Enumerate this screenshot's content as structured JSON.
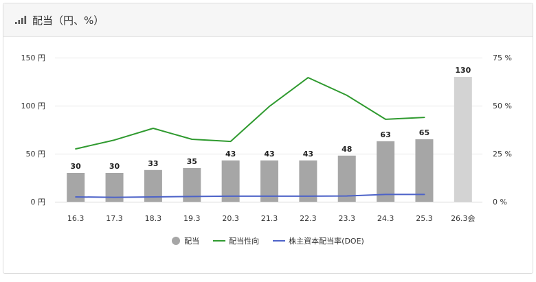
{
  "header": {
    "title": "配当（円、%）",
    "icon": "bar-chart-icon"
  },
  "chart_data": {
    "type": "bar",
    "categories": [
      "16.3",
      "17.3",
      "18.3",
      "19.3",
      "20.3",
      "21.3",
      "22.3",
      "23.3",
      "24.3",
      "25.3",
      "26.3会"
    ],
    "series": [
      {
        "name": "配当",
        "type": "bar",
        "axis": "left",
        "values": [
          30,
          30,
          33,
          35,
          43,
          43,
          43,
          48,
          63,
          65,
          130
        ],
        "data_labels": true,
        "color": "#a6a6a6",
        "bar_colors": [
          "#a6a6a6",
          "#a6a6a6",
          "#a6a6a6",
          "#a6a6a6",
          "#a6a6a6",
          "#a6a6a6",
          "#a6a6a6",
          "#a6a6a6",
          "#a6a6a6",
          "#a6a6a6",
          "#d3d3d3"
        ]
      },
      {
        "name": "配当性向",
        "type": "line",
        "axis": "right",
        "values": [
          27.5,
          32.1,
          38.2,
          32.5,
          31.4,
          49.6,
          64.6,
          55.4,
          42.9,
          43.9,
          null
        ],
        "color": "#2f9a2f"
      },
      {
        "name": "株主資本配当率(DOE)",
        "type": "line",
        "axis": "right",
        "values": [
          2.5,
          2.3,
          2.5,
          2.7,
          2.9,
          2.9,
          2.9,
          3.0,
          3.8,
          3.8,
          null
        ],
        "color": "#4c62c8"
      }
    ],
    "left_axis": {
      "range": [
        0,
        150
      ],
      "ticks": [
        {
          "value": 0,
          "label": "0 円"
        },
        {
          "value": 50,
          "label": "50 円"
        },
        {
          "value": 100,
          "label": "100 円"
        },
        {
          "value": 150,
          "label": "150 円"
        }
      ]
    },
    "right_axis": {
      "range": [
        0,
        75
      ],
      "ticks": [
        {
          "value": 0,
          "label": "0 %"
        },
        {
          "value": 25,
          "label": "25 %"
        },
        {
          "value": 50,
          "label": "50 %"
        },
        {
          "value": 75,
          "label": "75 %"
        }
      ]
    },
    "grid": true,
    "legend": {
      "position": "bottom"
    }
  }
}
